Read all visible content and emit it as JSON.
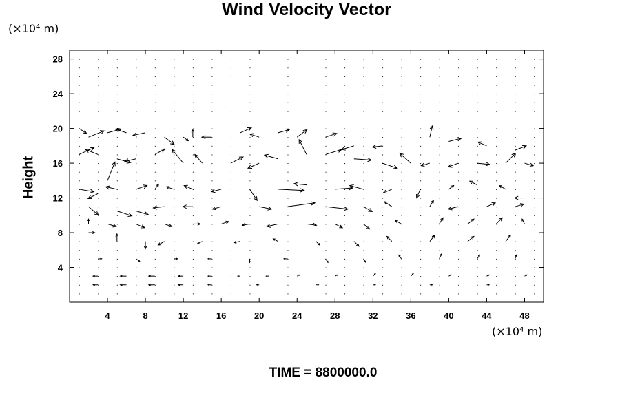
{
  "title": "Wind Velocity Vector",
  "y_unit": "(×10⁴ m)",
  "x_unit": "(×10⁴ m)",
  "ylabel": "Height",
  "footer": "TIME = 8800000.0",
  "chart_data": {
    "type": "quiver",
    "title": "Wind Velocity Vector",
    "xlabel": "",
    "ylabel": "Height",
    "x_unit": "(×10⁴ m)",
    "y_unit": "(×10⁴ m)",
    "xlim": [
      0,
      50
    ],
    "ylim": [
      0,
      29
    ],
    "xticks": [
      4,
      8,
      12,
      16,
      20,
      24,
      28,
      32,
      36,
      40,
      44,
      48
    ],
    "yticks": [
      4,
      8,
      12,
      16,
      20,
      24,
      28
    ],
    "grid": false,
    "note": "vector field sampled on a regular grid; near-calm above ~21 and below ~1",
    "vectors": [
      {
        "x": 1,
        "y": 20,
        "u": 1.2,
        "v": -0.8
      },
      {
        "x": 2,
        "y": 19,
        "u": 2.5,
        "v": 1.0
      },
      {
        "x": 4,
        "y": 19.5,
        "u": 2.2,
        "v": 0.6
      },
      {
        "x": 6,
        "y": 19.5,
        "u": -1.8,
        "v": 0.6
      },
      {
        "x": 8,
        "y": 19.5,
        "u": -2.0,
        "v": -0.4
      },
      {
        "x": 10,
        "y": 19,
        "u": 1.6,
        "v": -1.2
      },
      {
        "x": 12,
        "y": 19,
        "u": 0.8,
        "v": -0.6
      },
      {
        "x": 13,
        "y": 19,
        "u": 0.0,
        "v": 1.2
      },
      {
        "x": 15,
        "y": 19,
        "u": -1.6,
        "v": 0.0
      },
      {
        "x": 18,
        "y": 19.5,
        "u": 1.8,
        "v": 0.8
      },
      {
        "x": 20,
        "y": 19,
        "u": -1.5,
        "v": 0.5
      },
      {
        "x": 22,
        "y": 19.5,
        "u": 1.8,
        "v": 0.5
      },
      {
        "x": 24,
        "y": 19,
        "u": 1.6,
        "v": 1.2
      },
      {
        "x": 27,
        "y": 19,
        "u": 1.8,
        "v": 0.6
      },
      {
        "x": 30,
        "y": 18,
        "u": -2.0,
        "v": -0.6
      },
      {
        "x": 33,
        "y": 18,
        "u": -1.6,
        "v": -0.2
      },
      {
        "x": 38,
        "y": 19,
        "u": 0.4,
        "v": 1.8
      },
      {
        "x": 40,
        "y": 18.5,
        "u": 2.0,
        "v": 0.5
      },
      {
        "x": 44,
        "y": 18,
        "u": -1.4,
        "v": 0.6
      },
      {
        "x": 47,
        "y": 17.5,
        "u": 1.8,
        "v": 0.7
      },
      {
        "x": 1,
        "y": 17,
        "u": 2.4,
        "v": 1.1
      },
      {
        "x": 3,
        "y": 17,
        "u": -2.0,
        "v": 0.8
      },
      {
        "x": 5,
        "y": 16.5,
        "u": 2.2,
        "v": -0.6
      },
      {
        "x": 7,
        "y": 16.5,
        "u": -1.8,
        "v": -0.4
      },
      {
        "x": 9,
        "y": 17,
        "u": 1.6,
        "v": 0.9
      },
      {
        "x": 12,
        "y": 16,
        "u": -1.8,
        "v": 2.2
      },
      {
        "x": 14,
        "y": 16,
        "u": -1.2,
        "v": 1.4
      },
      {
        "x": 17,
        "y": 16,
        "u": 2.0,
        "v": 1.0
      },
      {
        "x": 20,
        "y": 16,
        "u": -1.8,
        "v": -0.8
      },
      {
        "x": 22,
        "y": 16.5,
        "u": -2.2,
        "v": 0.6
      },
      {
        "x": 25,
        "y": 17,
        "u": -1.2,
        "v": 2.4
      },
      {
        "x": 27,
        "y": 17,
        "u": 2.6,
        "v": 0.8
      },
      {
        "x": 30,
        "y": 16.5,
        "u": 2.8,
        "v": -0.2
      },
      {
        "x": 33,
        "y": 16,
        "u": 2.4,
        "v": -0.8
      },
      {
        "x": 36,
        "y": 16,
        "u": -1.8,
        "v": 1.6
      },
      {
        "x": 38,
        "y": 16,
        "u": -1.4,
        "v": -0.4
      },
      {
        "x": 41,
        "y": 16,
        "u": -1.6,
        "v": -0.6
      },
      {
        "x": 43,
        "y": 16,
        "u": 2.0,
        "v": -0.2
      },
      {
        "x": 46,
        "y": 16,
        "u": 1.6,
        "v": 1.6
      },
      {
        "x": 48,
        "y": 16,
        "u": 1.4,
        "v": -0.4
      },
      {
        "x": 1,
        "y": 13,
        "u": 2.4,
        "v": -0.4
      },
      {
        "x": 3,
        "y": 12.5,
        "u": -1.6,
        "v": -0.8
      },
      {
        "x": 4,
        "y": 14,
        "u": 1.2,
        "v": 3.0
      },
      {
        "x": 5,
        "y": 13,
        "u": -1.8,
        "v": 0.4
      },
      {
        "x": 7,
        "y": 13,
        "u": 1.8,
        "v": 0.6
      },
      {
        "x": 9,
        "y": 13,
        "u": 0.6,
        "v": 0.8
      },
      {
        "x": 11,
        "y": 13,
        "u": -1.2,
        "v": 0.4
      },
      {
        "x": 13,
        "y": 13,
        "u": -1.4,
        "v": 0.6
      },
      {
        "x": 16,
        "y": 13,
        "u": -1.6,
        "v": -0.4
      },
      {
        "x": 19,
        "y": 13,
        "u": 1.2,
        "v": -1.8
      },
      {
        "x": 22,
        "y": 13,
        "u": 4.2,
        "v": -0.2
      },
      {
        "x": 25,
        "y": 13.5,
        "u": -2.0,
        "v": 0.2
      },
      {
        "x": 28,
        "y": 13,
        "u": 2.8,
        "v": 0.2
      },
      {
        "x": 31,
        "y": 13,
        "u": -2.2,
        "v": 0.6
      },
      {
        "x": 34,
        "y": 13,
        "u": -1.4,
        "v": -0.6
      },
      {
        "x": 37,
        "y": 13,
        "u": -0.6,
        "v": -1.4
      },
      {
        "x": 40,
        "y": 13,
        "u": 0.8,
        "v": 0.6
      },
      {
        "x": 43,
        "y": 13.5,
        "u": -1.2,
        "v": 0.6
      },
      {
        "x": 46,
        "y": 13,
        "u": -1.0,
        "v": 0.6
      },
      {
        "x": 48,
        "y": 12,
        "u": -1.6,
        "v": 0.0
      },
      {
        "x": 2,
        "y": 11,
        "u": 1.6,
        "v": -1.4
      },
      {
        "x": 5,
        "y": 10.5,
        "u": 2.4,
        "v": -0.8
      },
      {
        "x": 7,
        "y": 10.5,
        "u": 2.0,
        "v": -0.6
      },
      {
        "x": 10,
        "y": 11,
        "u": -1.8,
        "v": -0.2
      },
      {
        "x": 13,
        "y": 11,
        "u": -1.6,
        "v": 0.0
      },
      {
        "x": 16,
        "y": 11,
        "u": -1.4,
        "v": -0.4
      },
      {
        "x": 20,
        "y": 11,
        "u": 2.0,
        "v": -0.4
      },
      {
        "x": 23,
        "y": 11,
        "u": 4.4,
        "v": 0.6
      },
      {
        "x": 27,
        "y": 11,
        "u": 3.6,
        "v": -0.4
      },
      {
        "x": 31,
        "y": 11,
        "u": 1.4,
        "v": -0.8
      },
      {
        "x": 34,
        "y": 11,
        "u": -1.2,
        "v": 0.8
      },
      {
        "x": 38,
        "y": 11,
        "u": 0.6,
        "v": 1.0
      },
      {
        "x": 41,
        "y": 11,
        "u": -1.6,
        "v": -0.4
      },
      {
        "x": 44,
        "y": 11,
        "u": 1.4,
        "v": 0.6
      },
      {
        "x": 47,
        "y": 11,
        "u": 1.4,
        "v": 0.4
      },
      {
        "x": 2,
        "y": 9,
        "u": 0.0,
        "v": 0.8
      },
      {
        "x": 4,
        "y": 9,
        "u": 1.4,
        "v": -0.4
      },
      {
        "x": 7,
        "y": 9,
        "u": 1.4,
        "v": -0.6
      },
      {
        "x": 10,
        "y": 9,
        "u": 1.2,
        "v": -0.4
      },
      {
        "x": 13,
        "y": 9,
        "u": 1.2,
        "v": 0.0
      },
      {
        "x": 16,
        "y": 9,
        "u": 1.2,
        "v": 0.4
      },
      {
        "x": 19,
        "y": 9,
        "u": -1.2,
        "v": -0.2
      },
      {
        "x": 22,
        "y": 9,
        "u": -1.8,
        "v": -0.4
      },
      {
        "x": 25,
        "y": 9,
        "u": 1.6,
        "v": -0.2
      },
      {
        "x": 28,
        "y": 9,
        "u": 1.2,
        "v": -0.6
      },
      {
        "x": 31,
        "y": 9,
        "u": 1.0,
        "v": -0.8
      },
      {
        "x": 35,
        "y": 9,
        "u": -1.0,
        "v": 0.6
      },
      {
        "x": 39,
        "y": 9,
        "u": 0.6,
        "v": 1.0
      },
      {
        "x": 42,
        "y": 9,
        "u": 1.0,
        "v": 0.8
      },
      {
        "x": 45,
        "y": 9,
        "u": 1.0,
        "v": 1.0
      },
      {
        "x": 48,
        "y": 9,
        "u": -0.4,
        "v": 0.8
      },
      {
        "x": 2,
        "y": 8,
        "u": 1.0,
        "v": 0.0
      },
      {
        "x": 5,
        "y": 7,
        "u": 0.0,
        "v": 1.2
      },
      {
        "x": 8,
        "y": 7,
        "u": 0.0,
        "v": -1.2
      },
      {
        "x": 10,
        "y": 7,
        "u": -1.0,
        "v": -0.6
      },
      {
        "x": 14,
        "y": 7,
        "u": -0.8,
        "v": -0.4
      },
      {
        "x": 18,
        "y": 7,
        "u": -1.0,
        "v": -0.2
      },
      {
        "x": 22,
        "y": 7,
        "u": -0.8,
        "v": 0.4
      },
      {
        "x": 26,
        "y": 7,
        "u": 0.6,
        "v": -0.6
      },
      {
        "x": 30,
        "y": 7,
        "u": 0.8,
        "v": -0.8
      },
      {
        "x": 34,
        "y": 7,
        "u": -0.8,
        "v": 0.8
      },
      {
        "x": 38,
        "y": 7,
        "u": 0.8,
        "v": 1.0
      },
      {
        "x": 42,
        "y": 7,
        "u": 1.0,
        "v": 0.8
      },
      {
        "x": 46,
        "y": 7,
        "u": 0.8,
        "v": 1.0
      },
      {
        "x": 3,
        "y": 5,
        "u": 0.6,
        "v": 0.0
      },
      {
        "x": 7,
        "y": 5,
        "u": 0.6,
        "v": -0.4
      },
      {
        "x": 11,
        "y": 5,
        "u": 0.6,
        "v": 0.0
      },
      {
        "x": 15,
        "y": 5,
        "u": -0.6,
        "v": 0.0
      },
      {
        "x": 19,
        "y": 5,
        "u": 0.0,
        "v": -0.6
      },
      {
        "x": 23,
        "y": 5,
        "u": -0.6,
        "v": 0.0
      },
      {
        "x": 27,
        "y": 5,
        "u": 0.4,
        "v": -0.6
      },
      {
        "x": 31,
        "y": 5,
        "u": 0.4,
        "v": -0.6
      },
      {
        "x": 35,
        "y": 5,
        "u": -0.4,
        "v": 0.6
      },
      {
        "x": 39,
        "y": 5,
        "u": 0.4,
        "v": 0.8
      },
      {
        "x": 43,
        "y": 5,
        "u": 0.4,
        "v": 0.6
      },
      {
        "x": 47,
        "y": 5,
        "u": 0.2,
        "v": 0.6
      },
      {
        "x": 3,
        "y": 3,
        "u": -0.8,
        "v": 0.0
      },
      {
        "x": 6,
        "y": 3,
        "u": -1.0,
        "v": 0.0
      },
      {
        "x": 9,
        "y": 3,
        "u": -1.0,
        "v": 0.0
      },
      {
        "x": 12,
        "y": 3,
        "u": -0.8,
        "v": 0.0
      },
      {
        "x": 15,
        "y": 3,
        "u": -0.6,
        "v": 0.0
      },
      {
        "x": 18,
        "y": 3,
        "u": -0.4,
        "v": 0.0
      },
      {
        "x": 21,
        "y": 3,
        "u": -0.4,
        "v": 0.0
      },
      {
        "x": 24,
        "y": 3,
        "u": 0.4,
        "v": 0.2
      },
      {
        "x": 28,
        "y": 3,
        "u": 0.4,
        "v": 0.2
      },
      {
        "x": 32,
        "y": 3,
        "u": 0.4,
        "v": 0.4
      },
      {
        "x": 36,
        "y": 3,
        "u": 0.4,
        "v": 0.4
      },
      {
        "x": 40,
        "y": 3,
        "u": 0.4,
        "v": 0.2
      },
      {
        "x": 44,
        "y": 3,
        "u": 0.4,
        "v": 0.2
      },
      {
        "x": 48,
        "y": 3,
        "u": 0.4,
        "v": 0.2
      },
      {
        "x": 3,
        "y": 2,
        "u": -0.8,
        "v": 0.0
      },
      {
        "x": 6,
        "y": 2,
        "u": -1.0,
        "v": 0.0
      },
      {
        "x": 9,
        "y": 2,
        "u": -1.0,
        "v": 0.0
      },
      {
        "x": 12,
        "y": 2,
        "u": -0.8,
        "v": 0.0
      },
      {
        "x": 15,
        "y": 2,
        "u": -0.6,
        "v": 0.0
      },
      {
        "x": 20,
        "y": 2,
        "u": -0.4,
        "v": 0.0
      },
      {
        "x": 26,
        "y": 2,
        "u": 0.4,
        "v": 0.0
      },
      {
        "x": 32,
        "y": 2,
        "u": 0.4,
        "v": 0.0
      },
      {
        "x": 38,
        "y": 2,
        "u": 0.4,
        "v": 0.0
      },
      {
        "x": 44,
        "y": 2,
        "u": 0.4,
        "v": 0.0
      }
    ]
  }
}
